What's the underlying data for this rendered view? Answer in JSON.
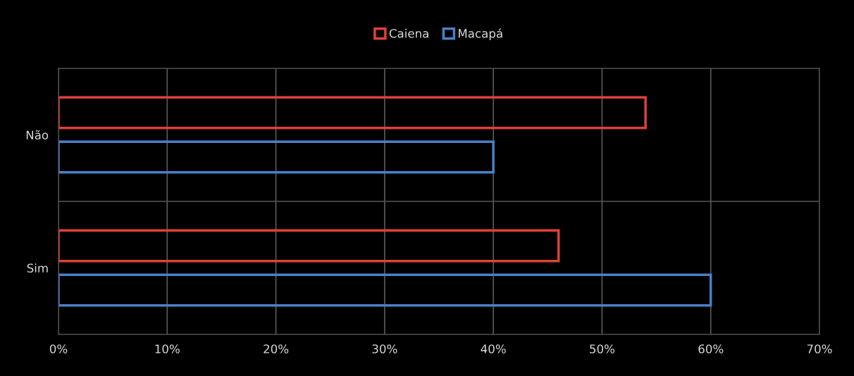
{
  "chart_data": {
    "type": "bar",
    "orientation": "horizontal",
    "categories": [
      "Não",
      "Sim"
    ],
    "series": [
      {
        "name": "Caiena",
        "color": "#e0403a",
        "values": [
          54,
          46
        ]
      },
      {
        "name": "Macapá",
        "color": "#4a80c8",
        "values": [
          40,
          60
        ]
      }
    ],
    "xlim": [
      0,
      70
    ],
    "xticks": [
      {
        "value": 0,
        "label": "0%"
      },
      {
        "value": 10,
        "label": "10%"
      },
      {
        "value": 20,
        "label": "20%"
      },
      {
        "value": 30,
        "label": "30%"
      },
      {
        "value": 40,
        "label": "40%"
      },
      {
        "value": 50,
        "label": "50%"
      },
      {
        "value": 60,
        "label": "60%"
      },
      {
        "value": 70,
        "label": "70%"
      }
    ],
    "grid": true,
    "legend": "top"
  }
}
